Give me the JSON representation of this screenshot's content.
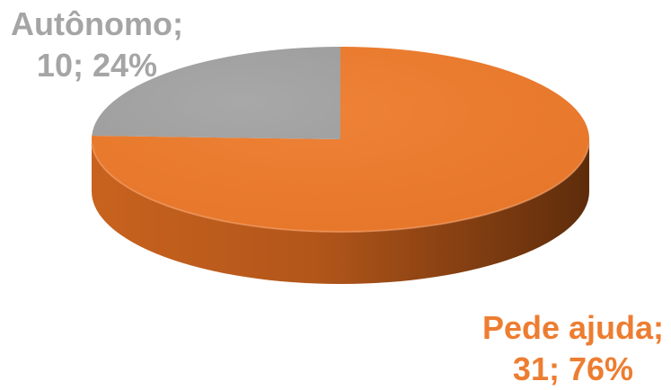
{
  "chart_data": {
    "type": "pie",
    "style": "3d",
    "title": "",
    "categories": [
      "Autônomo",
      "Pede ajuda"
    ],
    "values": [
      10,
      31
    ],
    "percentages": [
      24,
      76
    ],
    "colors": [
      "#a5a5a5",
      "#ed7d31"
    ],
    "legend": "none",
    "labels": [
      {
        "line1": "Autônomo;",
        "line2": "10; 24%"
      },
      {
        "line1": "Pede ajuda;",
        "line2": "31; 76%"
      }
    ]
  }
}
